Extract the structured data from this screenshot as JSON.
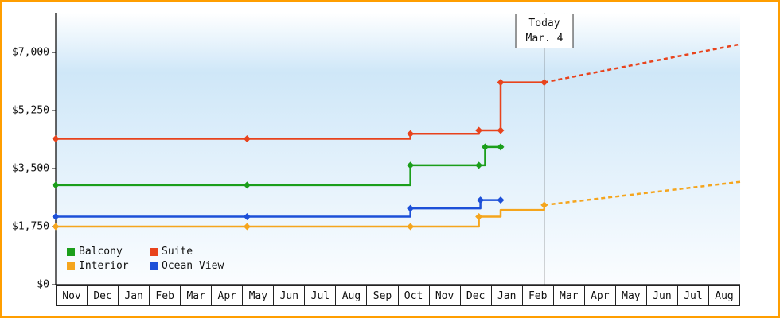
{
  "window": {
    "frame_color": "#ff9e00",
    "background": "#ffffff"
  },
  "chart_data": {
    "type": "line",
    "subtype": "step-price-history",
    "title": "",
    "xlabel": "",
    "ylabel": "",
    "x_categories": [
      "Nov",
      "Dec",
      "Jan",
      "Feb",
      "Mar",
      "Apr",
      "May",
      "Jun",
      "Jul",
      "Aug",
      "Sep",
      "Oct",
      "Nov",
      "Dec",
      "Jan",
      "Feb",
      "Mar",
      "Apr",
      "May",
      "Jun",
      "Jul",
      "Aug"
    ],
    "y_ticks": [
      {
        "label": "$0",
        "value": 0
      },
      {
        "label": "$1,750",
        "value": 1750
      },
      {
        "label": "$3,500",
        "value": 3500
      },
      {
        "label": "$5,250",
        "value": 5250
      },
      {
        "label": "$7,000",
        "value": 7000
      }
    ],
    "ylim": [
      0,
      8200
    ],
    "xlim": [
      0,
      22
    ],
    "grid": false,
    "legend_position": "bottom-left",
    "today": {
      "x": 15.7,
      "label": "Today",
      "date": "Mar. 4"
    },
    "series": [
      {
        "name": "Balcony",
        "color": "#1b9e1b",
        "points": [
          [
            0,
            3000
          ],
          [
            6.15,
            3000
          ],
          [
            11.4,
            3600
          ],
          [
            13.6,
            3600
          ],
          [
            13.8,
            4150
          ],
          [
            14.3,
            4150
          ]
        ],
        "markers": [
          [
            0,
            3000
          ],
          [
            6.15,
            3000
          ],
          [
            11.4,
            3600
          ],
          [
            13.6,
            3600
          ],
          [
            13.8,
            4150
          ],
          [
            14.3,
            4150
          ]
        ],
        "projection": null
      },
      {
        "name": "Suite",
        "color": "#e8431c",
        "points": [
          [
            0,
            4400
          ],
          [
            6.15,
            4400
          ],
          [
            11.4,
            4550
          ],
          [
            13.6,
            4650
          ],
          [
            14.3,
            4650
          ],
          [
            14.3,
            6100
          ],
          [
            15.7,
            6100
          ]
        ],
        "markers": [
          [
            0,
            4400
          ],
          [
            6.15,
            4400
          ],
          [
            11.4,
            4550
          ],
          [
            13.6,
            4650
          ],
          [
            14.3,
            4650
          ],
          [
            14.3,
            6100
          ],
          [
            15.7,
            6100
          ]
        ],
        "projection": [
          [
            15.7,
            6100
          ],
          [
            22,
            7250
          ]
        ]
      },
      {
        "name": "Interior",
        "color": "#f5a51d",
        "points": [
          [
            0,
            1750
          ],
          [
            6.15,
            1750
          ],
          [
            11.4,
            1750
          ],
          [
            13.6,
            2050
          ],
          [
            14.3,
            2250
          ],
          [
            15.7,
            2400
          ]
        ],
        "markers": [
          [
            0,
            1750
          ],
          [
            6.15,
            1750
          ],
          [
            11.4,
            1750
          ],
          [
            13.6,
            2050
          ],
          [
            15.7,
            2400
          ]
        ],
        "projection": [
          [
            15.7,
            2400
          ],
          [
            22,
            3100
          ]
        ]
      },
      {
        "name": "Ocean View",
        "color": "#1d50d8",
        "points": [
          [
            0,
            2050
          ],
          [
            6.15,
            2050
          ],
          [
            11.4,
            2300
          ],
          [
            13.65,
            2550
          ],
          [
            14.3,
            2550
          ]
        ],
        "markers": [
          [
            0,
            2050
          ],
          [
            6.15,
            2050
          ],
          [
            11.4,
            2300
          ],
          [
            13.65,
            2550
          ],
          [
            14.3,
            2550
          ]
        ],
        "projection": null
      }
    ],
    "legend": [
      {
        "label": "Balcony",
        "color": "#1b9e1b"
      },
      {
        "label": "Suite",
        "color": "#e8431c"
      },
      {
        "label": "Interior",
        "color": "#f5a51d"
      },
      {
        "label": "Ocean View",
        "color": "#1d50d8"
      }
    ],
    "plot_background": {
      "top": "#ffffff",
      "mid": "#cfe7f8",
      "bottom": "#fbfdff"
    }
  }
}
